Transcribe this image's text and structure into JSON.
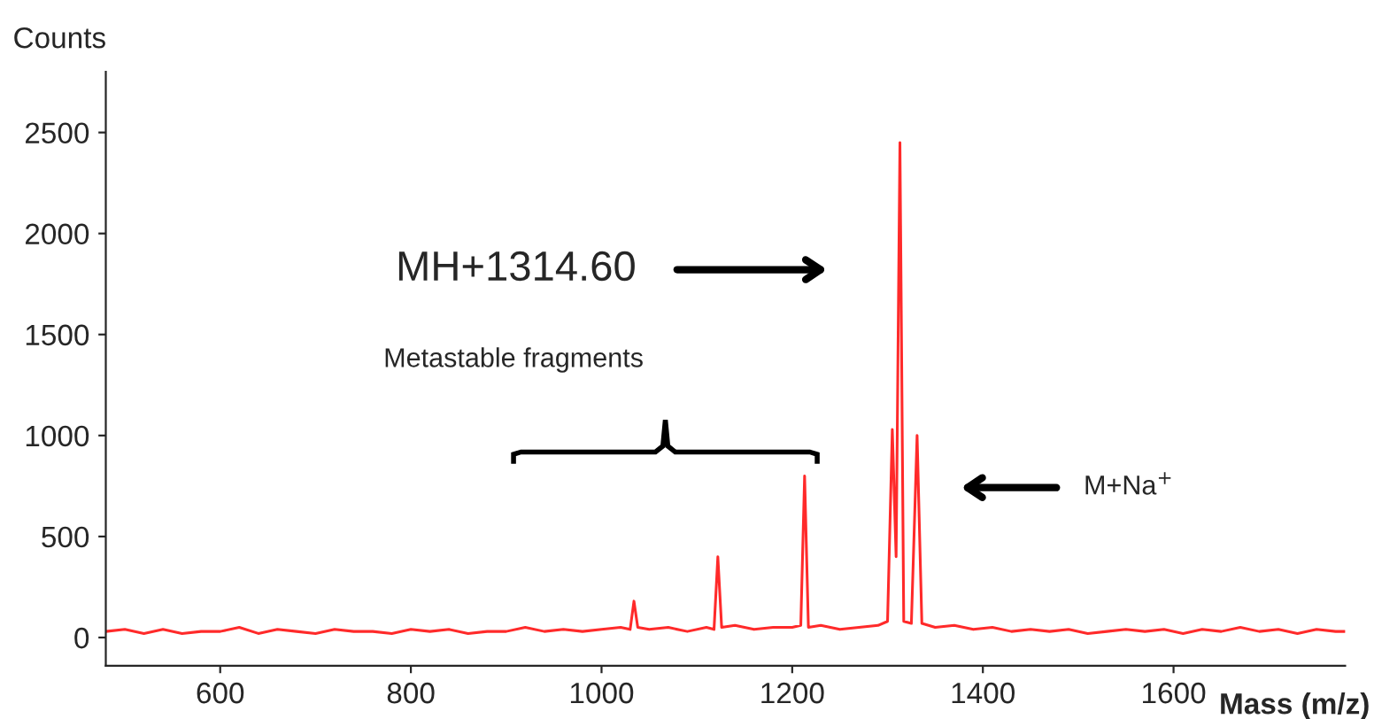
{
  "chart_data": {
    "type": "line",
    "xlabel": "Mass (m/z)",
    "ylabel": "Counts",
    "x": [
      480,
      500,
      520,
      540,
      560,
      580,
      600,
      620,
      640,
      660,
      680,
      700,
      720,
      740,
      760,
      780,
      800,
      820,
      840,
      860,
      880,
      900,
      920,
      940,
      960,
      980,
      1000,
      1020,
      1030,
      1034,
      1038,
      1050,
      1070,
      1090,
      1110,
      1118,
      1122,
      1126,
      1140,
      1160,
      1180,
      1200,
      1209,
      1213,
      1217,
      1230,
      1250,
      1270,
      1290,
      1300,
      1305,
      1309,
      1313,
      1317,
      1325,
      1331,
      1336,
      1350,
      1370,
      1390,
      1410,
      1430,
      1450,
      1470,
      1490,
      1510,
      1530,
      1550,
      1570,
      1590,
      1610,
      1630,
      1650,
      1670,
      1690,
      1710,
      1730,
      1750,
      1770,
      1780
    ],
    "series": [
      {
        "color": "#ff2a2a",
        "values": [
          30,
          40,
          20,
          40,
          20,
          30,
          30,
          50,
          20,
          40,
          30,
          20,
          40,
          30,
          30,
          20,
          40,
          30,
          40,
          20,
          30,
          30,
          50,
          30,
          40,
          30,
          40,
          50,
          40,
          180,
          50,
          40,
          50,
          30,
          50,
          40,
          400,
          50,
          60,
          40,
          50,
          50,
          60,
          800,
          50,
          60,
          40,
          50,
          60,
          80,
          1030,
          400,
          2450,
          80,
          70,
          1000,
          70,
          50,
          60,
          40,
          50,
          30,
          40,
          30,
          40,
          20,
          30,
          40,
          30,
          40,
          20,
          40,
          30,
          50,
          30,
          40,
          20,
          40,
          30,
          30
        ]
      }
    ],
    "xlim": [
      480,
      1780
    ],
    "ylim": [
      -140,
      2800
    ],
    "xticks": [
      600,
      800,
      1000,
      1200,
      1400,
      1600
    ],
    "yticks": [
      0,
      500,
      1000,
      1500,
      2000,
      2500
    ],
    "grid": false,
    "annotations": [
      "MH+1314.60",
      "Metastable fragments",
      "M+Na$^{+}$"
    ]
  }
}
